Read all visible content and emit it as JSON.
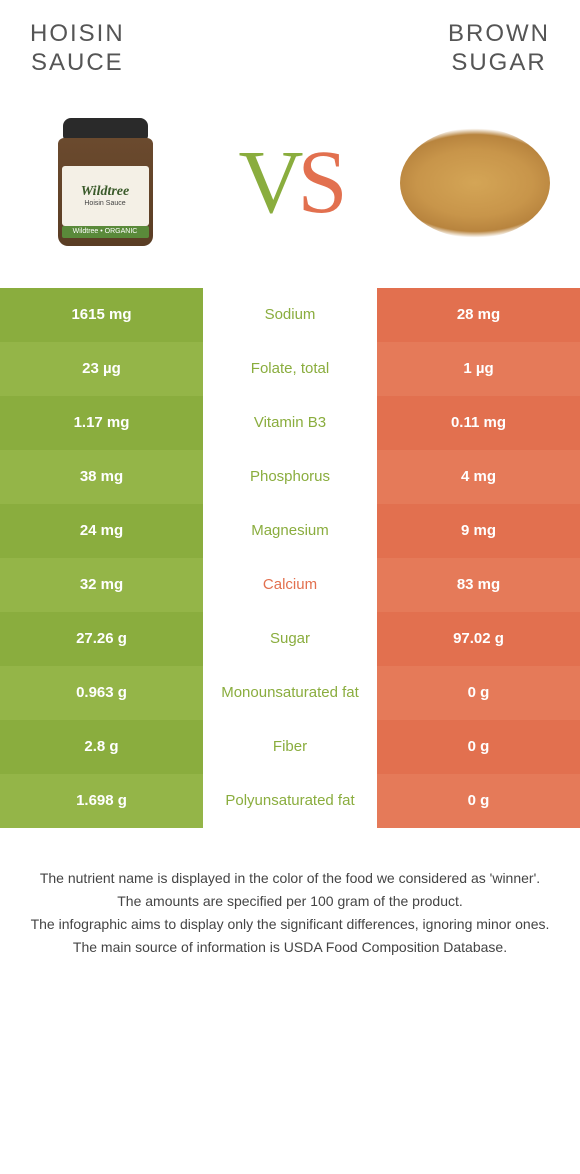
{
  "colors": {
    "green_bg": "#8aad3e",
    "green_bg_alt": "#94b548",
    "orange_bg": "#e2704f",
    "orange_bg_alt": "#e57a59",
    "green_text": "#8aad3e",
    "orange_text": "#e2704f"
  },
  "title_left": "HOISIN\nSAUCE",
  "title_right": "BROWN\nSUGAR",
  "jar_brand": "Wildtree",
  "jar_sub": "Hoisin Sauce",
  "jar_band": "Wildtree • ORGANIC",
  "vs_v": "V",
  "vs_s": "S",
  "rows": [
    {
      "left": "1615 mg",
      "mid": "Sodium",
      "right": "28 mg",
      "mid_color": "green"
    },
    {
      "left": "23 µg",
      "mid": "Folate, total",
      "right": "1 µg",
      "mid_color": "green"
    },
    {
      "left": "1.17 mg",
      "mid": "Vitamin B3",
      "right": "0.11 mg",
      "mid_color": "green"
    },
    {
      "left": "38 mg",
      "mid": "Phosphorus",
      "right": "4 mg",
      "mid_color": "green"
    },
    {
      "left": "24 mg",
      "mid": "Magnesium",
      "right": "9 mg",
      "mid_color": "green"
    },
    {
      "left": "32 mg",
      "mid": "Calcium",
      "right": "83 mg",
      "mid_color": "orange"
    },
    {
      "left": "27.26 g",
      "mid": "Sugar",
      "right": "97.02 g",
      "mid_color": "green"
    },
    {
      "left": "0.963 g",
      "mid": "Monounsaturated fat",
      "right": "0 g",
      "mid_color": "green"
    },
    {
      "left": "2.8 g",
      "mid": "Fiber",
      "right": "0 g",
      "mid_color": "green"
    },
    {
      "left": "1.698 g",
      "mid": "Polyunsaturated fat",
      "right": "0 g",
      "mid_color": "green"
    }
  ],
  "footer": [
    "The nutrient name is displayed in the color of the food we considered as 'winner'.",
    "The amounts are specified per 100 gram of the product.",
    "The infographic aims to display only the significant differences, ignoring minor ones.",
    "The main source of information is USDA Food Composition Database."
  ]
}
